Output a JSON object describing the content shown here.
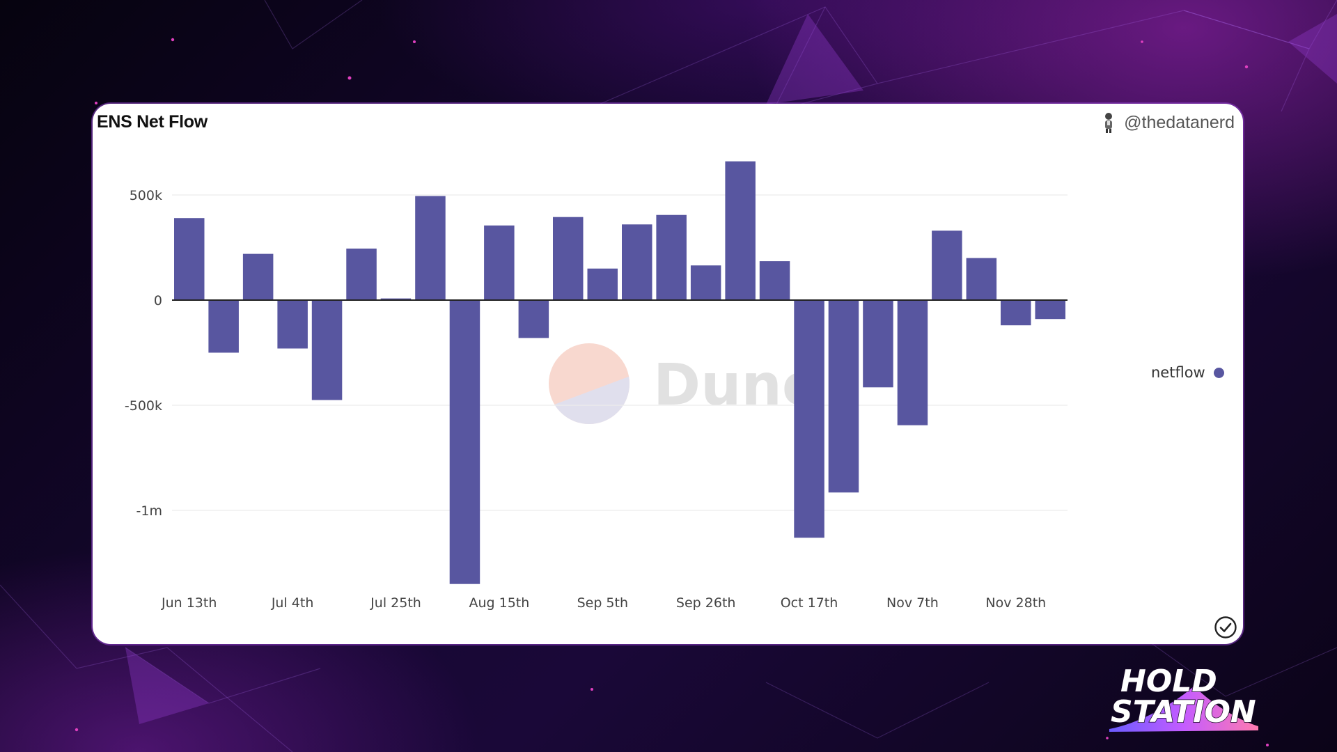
{
  "card": {
    "title": "ENS Net Flow",
    "author": "@thedatanerd",
    "watermark": "Dune"
  },
  "legend": {
    "label": "netflow",
    "color": "#5856a0"
  },
  "brand": {
    "line1": "HOLD",
    "line2": "STATION"
  },
  "icons": {
    "author": "person-avatar-icon",
    "status": "check-circle-icon"
  },
  "chart_data": {
    "type": "bar",
    "title": "ENS Net Flow",
    "series": [
      {
        "name": "netflow",
        "color": "#5856a0",
        "values": [
          390000,
          -250000,
          220000,
          -230000,
          -475000,
          245000,
          8000,
          495000,
          -1350000,
          355000,
          -180000,
          395000,
          150000,
          360000,
          405000,
          165000,
          660000,
          185000,
          -1130000,
          -915000,
          -415000,
          -595000,
          330000,
          200000,
          -120000,
          -90000
        ]
      }
    ],
    "x_tick_labels": [
      "Jun 13th",
      "Jul 4th",
      "Jul 25th",
      "Aug 15th",
      "Sep 5th",
      "Sep 26th",
      "Oct 17th",
      "Nov 7th",
      "Nov 28th"
    ],
    "x_tick_every": 3,
    "y_ticks": [
      {
        "value": 500000,
        "label": "500k"
      },
      {
        "value": 0,
        "label": "0"
      },
      {
        "value": -500000,
        "label": "-500k"
      },
      {
        "value": -1000000,
        "label": "-1m"
      }
    ],
    "ylim": [
      -1350000,
      660000
    ],
    "grid": true,
    "legend_position": "right"
  }
}
